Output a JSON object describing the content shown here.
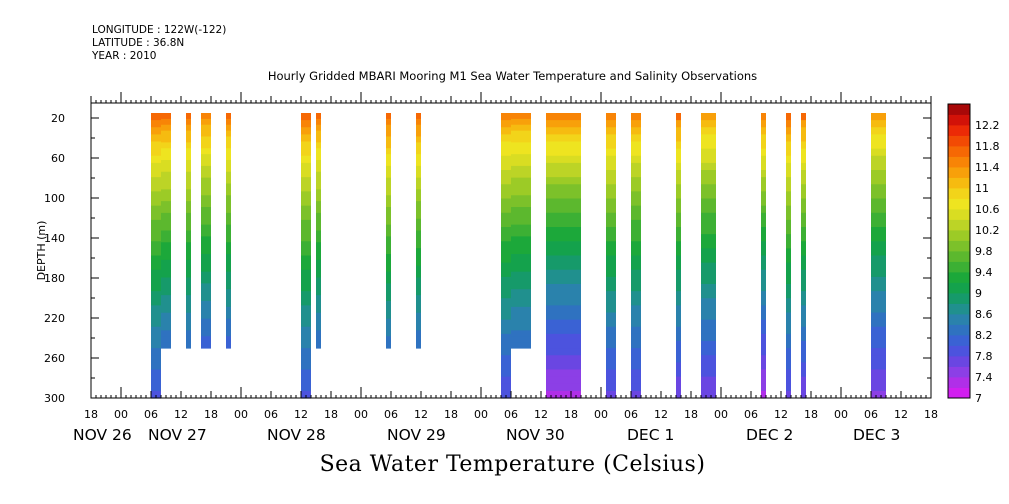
{
  "header": {
    "longitude": "LONGITUDE : 122W(-122)",
    "latitude": "LATITUDE : 36.8N",
    "year": "YEAR : 2010"
  },
  "chart_data": {
    "type": "heatmap",
    "title": "Hourly Gridded MBARI Mooring M1 Sea Water Temperature and Salinity Observations",
    "bottom_title": "Sea Water Temperature (Celsius)",
    "ylabel": "DEPTH (m)",
    "y_ticks": [
      20,
      60,
      100,
      140,
      180,
      220,
      260,
      300
    ],
    "ylim": [
      300,
      5
    ],
    "x_hour_labels": [
      "18",
      "00",
      "06",
      "12",
      "18",
      "00",
      "06",
      "12",
      "18",
      "00",
      "06",
      "12",
      "18",
      "00",
      "06",
      "12",
      "18",
      "00",
      "06",
      "12",
      "18",
      "00",
      "06",
      "12",
      "18",
      "00",
      "06",
      "12",
      "18"
    ],
    "x_day_labels": [
      "NOV 26",
      "NOV 27",
      "NOV 28",
      "NOV 29",
      "NOV 30",
      "DEC  1",
      "DEC  2",
      "DEC  3"
    ],
    "x_range_hours_since_nov26_00": [
      18,
      186
    ],
    "colorbar": {
      "levels": [
        7,
        7.2,
        7.4,
        7.6,
        7.8,
        8,
        8.2,
        8.4,
        8.6,
        8.8,
        9,
        9.2,
        9.4,
        9.6,
        9.8,
        10,
        10.2,
        10.4,
        10.6,
        10.8,
        11,
        11.2,
        11.4,
        11.6,
        11.8,
        12,
        12.2,
        12.4
      ],
      "labels": [
        "7",
        "7.4",
        "7.8",
        "8.2",
        "8.6",
        "9",
        "9.4",
        "9.8",
        "10.2",
        "10.6",
        "11",
        "11.4",
        "11.8",
        "12.2"
      ],
      "colors": [
        "#d21ff0",
        "#b02fe8",
        "#8c3fe6",
        "#6a46e2",
        "#4c53de",
        "#3a62d4",
        "#2f72c0",
        "#2a82ac",
        "#20908e",
        "#169a6a",
        "#14a24c",
        "#1ca83a",
        "#3cb034",
        "#5cb82e",
        "#7cc12a",
        "#9ccb26",
        "#bcd426",
        "#d9dd22",
        "#eee420",
        "#f2d41a",
        "#f6bb10",
        "#f8a00a",
        "#f88406",
        "#f66804",
        "#f24a04",
        "#ec2a06",
        "#d21208",
        "#a80808"
      ]
    },
    "columns": [
      {
        "start": 30,
        "end": 32,
        "max_depth": 300,
        "t_top": 11.8,
        "t_bot": 7.9
      },
      {
        "start": 32,
        "end": 34,
        "max_depth": 250,
        "t_top": 11.8,
        "t_bot": 8.2
      },
      {
        "start": 37,
        "end": 38,
        "max_depth": 250,
        "t_top": 11.8,
        "t_bot": 8.2
      },
      {
        "start": 40,
        "end": 42,
        "max_depth": 250,
        "t_top": 11.7,
        "t_bot": 8.1
      },
      {
        "start": 45,
        "end": 46,
        "max_depth": 250,
        "t_top": 11.8,
        "t_bot": 8.1
      },
      {
        "start": 60,
        "end": 62,
        "max_depth": 300,
        "t_top": 11.8,
        "t_bot": 7.9
      },
      {
        "start": 63,
        "end": 64,
        "max_depth": 250,
        "t_top": 11.8,
        "t_bot": 8.2
      },
      {
        "start": 77,
        "end": 78,
        "max_depth": 250,
        "t_top": 11.9,
        "t_bot": 8.3
      },
      {
        "start": 83,
        "end": 84,
        "max_depth": 250,
        "t_top": 11.9,
        "t_bot": 8.2
      },
      {
        "start": 100,
        "end": 102,
        "max_depth": 300,
        "t_top": 11.6,
        "t_bot": 7.8
      },
      {
        "start": 102,
        "end": 106,
        "max_depth": 250,
        "t_top": 11.6,
        "t_bot": 8.2
      },
      {
        "start": 109,
        "end": 116,
        "max_depth": 300,
        "t_top": 11.7,
        "t_bot": 7.3
      },
      {
        "start": 121,
        "end": 123,
        "max_depth": 300,
        "t_top": 11.7,
        "t_bot": 7.7
      },
      {
        "start": 126,
        "end": 128,
        "max_depth": 300,
        "t_top": 11.6,
        "t_bot": 7.7
      },
      {
        "start": 135,
        "end": 136,
        "max_depth": 300,
        "t_top": 11.8,
        "t_bot": 7.6
      },
      {
        "start": 140,
        "end": 143,
        "max_depth": 300,
        "t_top": 11.5,
        "t_bot": 7.6
      },
      {
        "start": 152,
        "end": 153,
        "max_depth": 300,
        "t_top": 11.8,
        "t_bot": 7.3
      },
      {
        "start": 157,
        "end": 158,
        "max_depth": 300,
        "t_top": 11.9,
        "t_bot": 7.7
      },
      {
        "start": 160,
        "end": 161,
        "max_depth": 300,
        "t_top": 11.8,
        "t_bot": 7.6
      },
      {
        "start": 174,
        "end": 177,
        "max_depth": 300,
        "t_top": 11.5,
        "t_bot": 7.5
      }
    ]
  }
}
